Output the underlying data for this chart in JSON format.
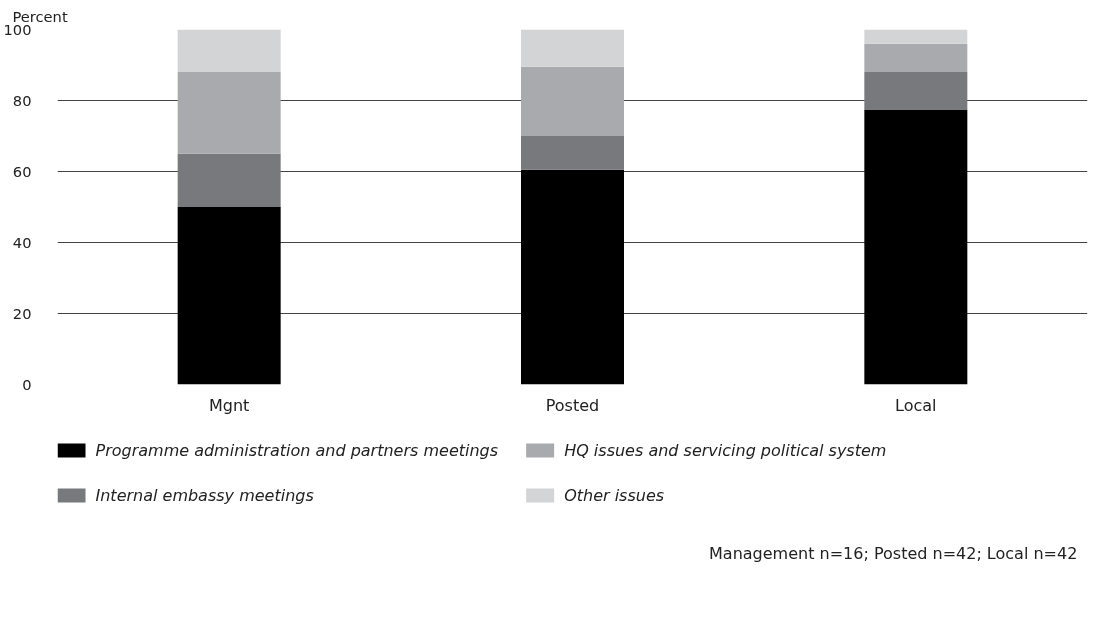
{
  "chart_data": {
    "type": "bar",
    "stacked": true,
    "ylabel": "Percent",
    "categories": [
      "Mgnt",
      "Posted",
      "Local"
    ],
    "series": [
      {
        "name": "Programme administration and partners meetings",
        "color": "#000000",
        "values": [
          50,
          60.5,
          77.5
        ]
      },
      {
        "name": "Internal embassy meetings",
        "color": "#78797d",
        "values": [
          15,
          9.5,
          10.5
        ]
      },
      {
        "name": "HQ issues and servicing political system",
        "color": "#a9aaad",
        "values": [
          23,
          19.5,
          8
        ]
      },
      {
        "name": "Other issues",
        "color": "#d3d4d6",
        "values": [
          12,
          10.5,
          4
        ]
      }
    ],
    "ylim": [
      0,
      100
    ],
    "yticks": [
      0,
      20,
      40,
      60,
      80,
      100
    ],
    "grid": "y",
    "legend": "bottom",
    "annotations": [
      "Management n=16;  Posted n=42;  Local n=42"
    ]
  }
}
